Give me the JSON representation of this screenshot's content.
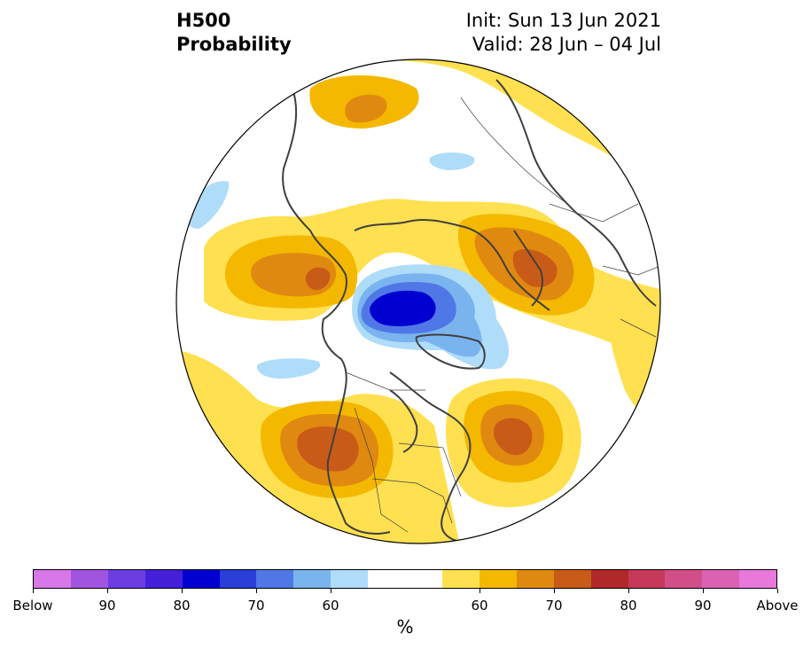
{
  "title": {
    "line1": "H500",
    "line2": "Probability"
  },
  "init": "Init: Sun 13 Jun 2021",
  "valid": "Valid: 28 Jun – 04 Jul",
  "colorbar": {
    "colors": [
      "#d877e8",
      "#a154e0",
      "#6c3ce0",
      "#4420d8",
      "#0000d0",
      "#2a3ed8",
      "#4f78e6",
      "#7ab4ef",
      "#afdcf9",
      "#ffffff",
      "#ffffff",
      "#ffe050",
      "#f4b800",
      "#e08910",
      "#c95b18",
      "#b02828",
      "#c43a58",
      "#d24e88",
      "#db62b2",
      "#e878da"
    ],
    "labels": [
      {
        "text": "Below",
        "index": 0
      },
      {
        "text": "90",
        "index": 2
      },
      {
        "text": "80",
        "index": 4
      },
      {
        "text": "70",
        "index": 6
      },
      {
        "text": "60",
        "index": 8
      },
      {
        "text": "60",
        "index": 12
      },
      {
        "text": "70",
        "index": 14
      },
      {
        "text": "80",
        "index": 16
      },
      {
        "text": "90",
        "index": 18
      },
      {
        "text": "Above",
        "index": 20
      }
    ],
    "units": "%"
  },
  "map_colors": {
    "above50": "#ffe050",
    "above60": "#f4b800",
    "above65": "#e08910",
    "above70": "#c95b18",
    "below50": "#afdcf9",
    "below60": "#7ab4ef",
    "below65": "#4f78e6",
    "below70": "#2a3ed8",
    "below80": "#0000d0",
    "coast": "#404040",
    "border": "#404040"
  }
}
